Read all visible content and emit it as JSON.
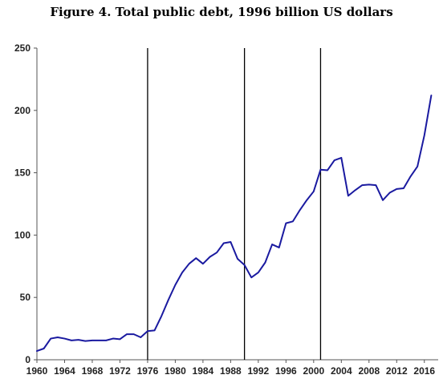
{
  "chart_data": {
    "type": "line",
    "title": "Figure 4. Total public debt, 1996 billion US dollars",
    "xlabel": "",
    "ylabel": "",
    "xlim": [
      1960,
      2018
    ],
    "ylim": [
      0,
      250
    ],
    "yticks": [
      0,
      50,
      100,
      150,
      200,
      250
    ],
    "xticks": [
      1960,
      1964,
      1968,
      1972,
      1976,
      1980,
      1984,
      1988,
      1992,
      1996,
      2000,
      2004,
      2008,
      2012,
      2016
    ],
    "xtick_labels": [
      "1960",
      "1964",
      "1968",
      "1972",
      "1976",
      "1980",
      "1984",
      "1988",
      "1992",
      "1996",
      "2000",
      "2004",
      "2008",
      "2012",
      "2016"
    ],
    "vertical_lines": [
      1976,
      1990,
      2001
    ],
    "grid": false,
    "legend": "none",
    "line_color": "#1a1aa0",
    "series": [
      {
        "x": [
          1960,
          1961,
          1962,
          1963,
          1964,
          1965,
          1966,
          1967,
          1968,
          1969,
          1970,
          1971,
          1972,
          1973,
          1974,
          1975,
          1976,
          1977,
          1978,
          1979,
          1980,
          1981,
          1982,
          1983,
          1984,
          1985,
          1986,
          1987,
          1988,
          1989,
          1990,
          1991,
          1992,
          1993,
          1994,
          1995,
          1996,
          1997,
          1998,
          1999,
          2000,
          2001,
          2002,
          2003,
          2004,
          2005,
          2006,
          2007,
          2008,
          2009,
          2010,
          2011,
          2012,
          2013,
          2014,
          2015,
          2016,
          2017
        ],
        "y": [
          7,
          9,
          17,
          18,
          17,
          15.5,
          16,
          15,
          15.5,
          15.5,
          15.5,
          17,
          16.5,
          20.5,
          20.5,
          18,
          23,
          23.5,
          35,
          48,
          60,
          70,
          77,
          81.5,
          77,
          82.5,
          86,
          93.5,
          94.5,
          81,
          76,
          66,
          70,
          78,
          92.5,
          90,
          109.5,
          111,
          120,
          128,
          135,
          152.5,
          152,
          160,
          162,
          131.5,
          136,
          140,
          140.5,
          140,
          128,
          134,
          137,
          137.5,
          147,
          155,
          180,
          212
        ]
      }
    ]
  }
}
